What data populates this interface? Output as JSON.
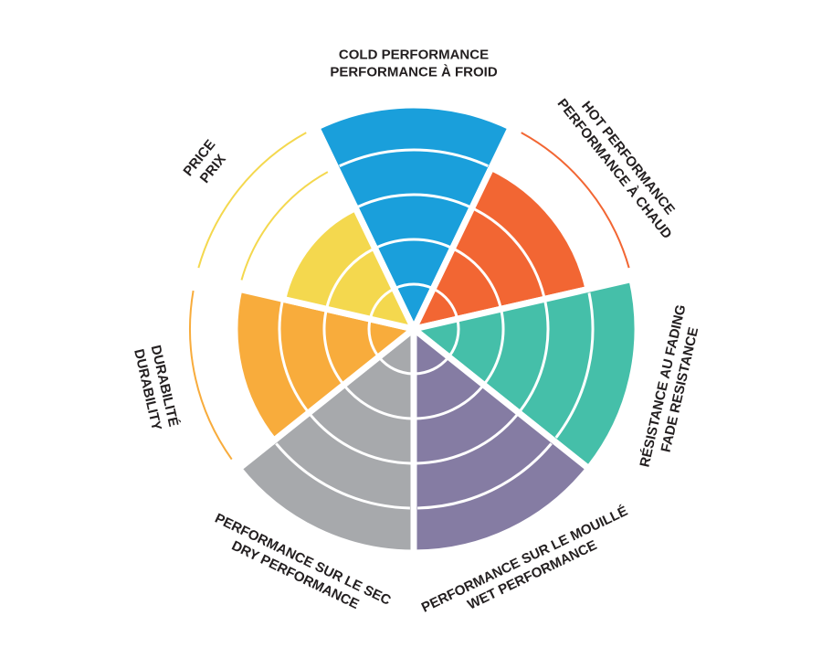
{
  "chart_data": {
    "type": "polar-area",
    "categories": [
      [
        "COLD PERFORMANCE",
        "PERFORMANCE À FROID"
      ],
      [
        "HOT PERFORMANCE",
        "PERFORMANCE À CHAUD"
      ],
      [
        "RÉSISTANCE AU FADING",
        "FADE RESISTANCE"
      ],
      [
        "PERFORMANCE SUR LE MOUILLÉ",
        "WET PERFORMANCE"
      ],
      [
        "PERFORMANCE SUR LE SEC",
        "DRY PERFORMANCE"
      ],
      [
        "DURABILITÉ",
        "DURABILITY"
      ],
      [
        "PRICE",
        "PRIX"
      ]
    ],
    "values": [
      5,
      4,
      5,
      5,
      5,
      4,
      3
    ],
    "colors": [
      "#1a9fdb",
      "#f26633",
      "#45bfa9",
      "#857ca3",
      "#a7a9ac",
      "#f8ac3c",
      "#f4d84e"
    ],
    "rlim": [
      0,
      5
    ],
    "rticks": [
      1,
      2,
      3,
      4,
      5
    ]
  }
}
